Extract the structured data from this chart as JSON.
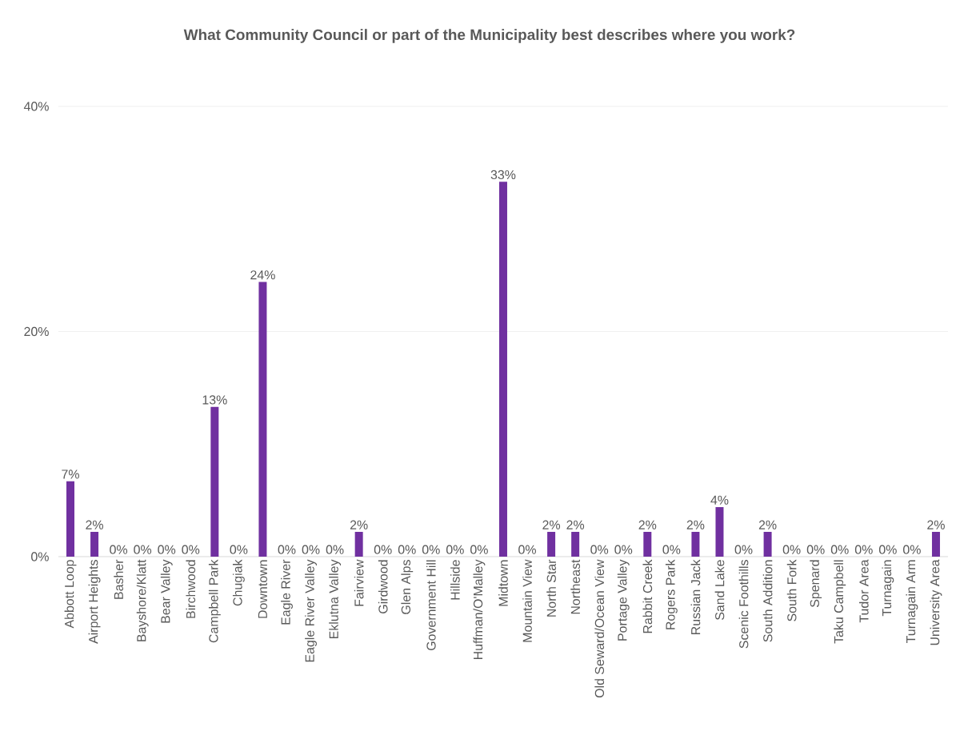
{
  "chart_data": {
    "type": "bar",
    "title": "What Community Council or part of the Municipality best describes where you work?",
    "categories": [
      "Abbott Loop",
      "Airport Heights",
      "Basher",
      "Bayshore/Klatt",
      "Bear Valley",
      "Birchwood",
      "Campbell Park",
      "Chugiak",
      "Downtown",
      "Eagle River",
      "Eagle River Valley",
      "Eklutna Valley",
      "Fairview",
      "Girdwood",
      "Glen Alps",
      "Government Hill",
      "Hillside",
      "Huffman/O'Malley",
      "Midtown",
      "Mountain View",
      "North Star",
      "Northeast",
      "Old Seward/Ocean View",
      "Portage Valley",
      "Rabbit Creek",
      "Rogers Park",
      "Russian Jack",
      "Sand Lake",
      "Scenic Foothills",
      "South Addition",
      "South Fork",
      "Spenard",
      "Taku Campbell",
      "Tudor Area",
      "Turnagain",
      "Turnagain Arm",
      "University Area"
    ],
    "values": [
      6.7,
      2.2,
      0,
      0,
      0,
      0,
      13.3,
      0,
      24.4,
      0,
      0,
      0,
      2.2,
      0,
      0,
      0,
      0,
      0,
      33.3,
      0,
      2.2,
      2.2,
      0,
      0,
      2.2,
      0,
      2.2,
      4.4,
      0,
      2.2,
      0,
      0,
      0,
      0,
      0,
      0,
      2.2
    ],
    "value_labels": [
      "7%",
      "2%",
      "0%",
      "0%",
      "0%",
      "0%",
      "13%",
      "0%",
      "24%",
      "0%",
      "0%",
      "0%",
      "2%",
      "0%",
      "0%",
      "0%",
      "0%",
      "0%",
      "33%",
      "0%",
      "2%",
      "2%",
      "0%",
      "0%",
      "2%",
      "0%",
      "2%",
      "4%",
      "0%",
      "2%",
      "0%",
      "0%",
      "0%",
      "0%",
      "0%",
      "0%",
      "2%"
    ],
    "color": "#7030a0",
    "ylim": [
      0,
      40
    ],
    "yticks": [
      {
        "value": 0,
        "label": "0%"
      },
      {
        "value": 20,
        "label": "20%"
      },
      {
        "value": 40,
        "label": "40%"
      }
    ],
    "grid": "y"
  }
}
